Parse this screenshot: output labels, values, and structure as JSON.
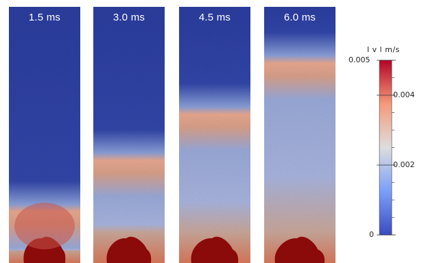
{
  "panels": [
    {
      "label": "1.5 ms",
      "front_level": 0.8,
      "intensity": 0.75
    },
    {
      "label": "3.0 ms",
      "front_level": 0.6,
      "intensity": 0.55
    },
    {
      "label": "4.5 ms",
      "front_level": 0.42,
      "intensity": 0.5
    },
    {
      "label": "6.0 ms",
      "front_level": 0.22,
      "intensity": 0.5
    }
  ],
  "colorbar": {
    "title": "l v l m/s",
    "ticks": [
      {
        "value": 0.005,
        "label": "0.005"
      },
      {
        "value": 0.004,
        "label": "0.004"
      },
      {
        "value": 0.002,
        "label": "0.002"
      },
      {
        "value": 0,
        "label": "0"
      }
    ],
    "min": 0,
    "max": 0.005
  },
  "colors": {
    "low": "#3b4cc0",
    "mid": "#dddddd",
    "high": "#b40426",
    "core": "#8b0a0a"
  }
}
